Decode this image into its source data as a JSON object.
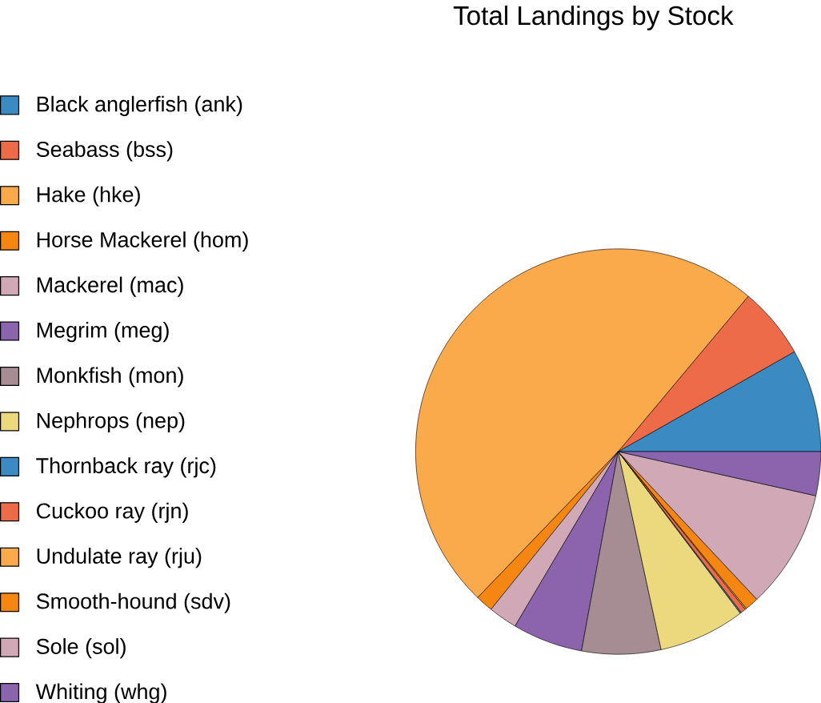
{
  "chart_data": {
    "type": "pie",
    "title": "Total Landings by Stock",
    "categories": [
      "Black anglerfish (ank)",
      "Seabass (bss)",
      "Hake (hke)",
      "Horse Mackerel (hom)",
      "Mackerel (mac)",
      "Megrim (meg)",
      "Monkfish (mon)",
      "Nephrops (nep)",
      "Thornback ray (rjc)",
      "Cuckoo ray (rjn)",
      "Undulate ray (rju)",
      "Smooth-hound (sdv)",
      "Sole (sol)",
      "Whiting (whg)"
    ],
    "values": [
      8.2,
      5.7,
      48.9,
      1.4,
      2.3,
      5.6,
      6.3,
      6.9,
      0.1,
      0.4,
      0.1,
      1.1,
      9.5,
      3.5
    ],
    "colors": [
      "#3b8bc2",
      "#ee6b49",
      "#fbaa4b",
      "#f58612",
      "#d0a8b6",
      "#8c64ae",
      "#a68d94",
      "#ecd97e",
      "#3b8bc2",
      "#ee6b49",
      "#fbaa4b",
      "#f58612",
      "#d0a8b6",
      "#8c64ae"
    ],
    "legend": "left"
  }
}
